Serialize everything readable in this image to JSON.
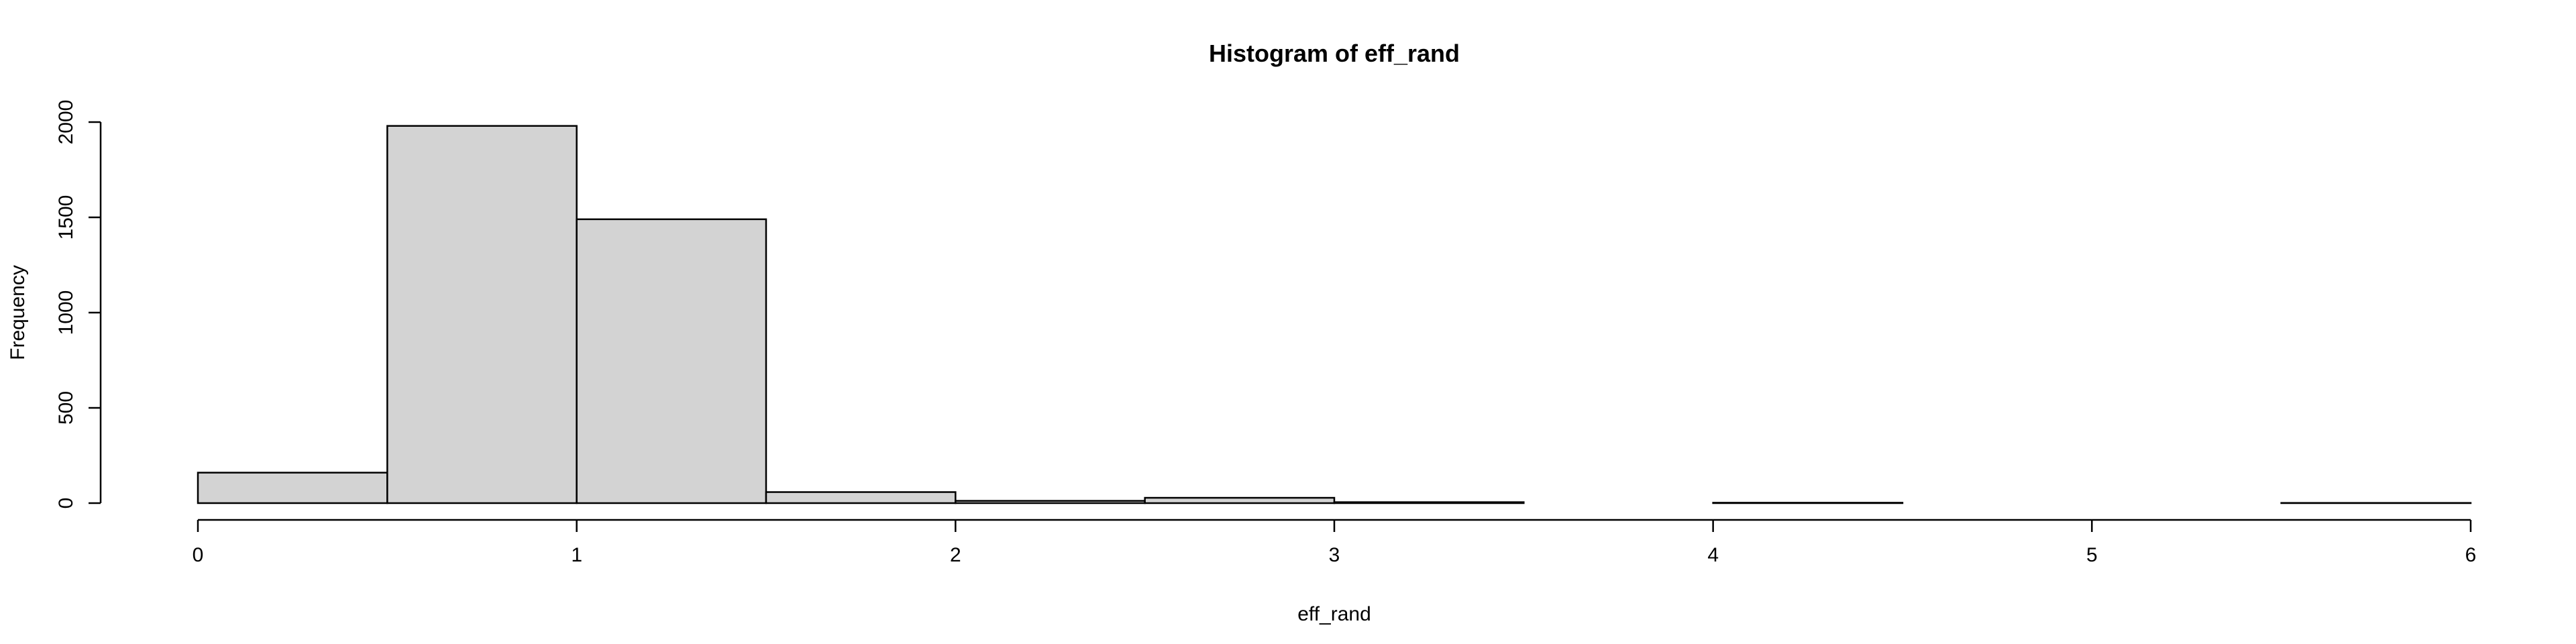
{
  "chart_data": {
    "type": "bar",
    "title": "Histogram of eff_rand",
    "xlabel": "eff_rand",
    "ylabel": "Frequency",
    "bin_edges": [
      0,
      0.5,
      1,
      1.5,
      2,
      2.5,
      3,
      3.5,
      4,
      4.5,
      5,
      5.5,
      6
    ],
    "values": [
      160,
      1980,
      1490,
      58,
      12,
      28,
      5,
      0,
      2,
      0,
      0,
      1
    ],
    "xlim": [
      0,
      6
    ],
    "ylim": [
      0,
      2000
    ],
    "x_ticks": [
      0,
      1,
      2,
      3,
      4,
      5,
      6
    ],
    "y_ticks": [
      0,
      500,
      1000,
      1500,
      2000
    ],
    "grid": false,
    "legend": "none",
    "bar_color": "#d3d3d3",
    "edge_color": "#000000"
  }
}
